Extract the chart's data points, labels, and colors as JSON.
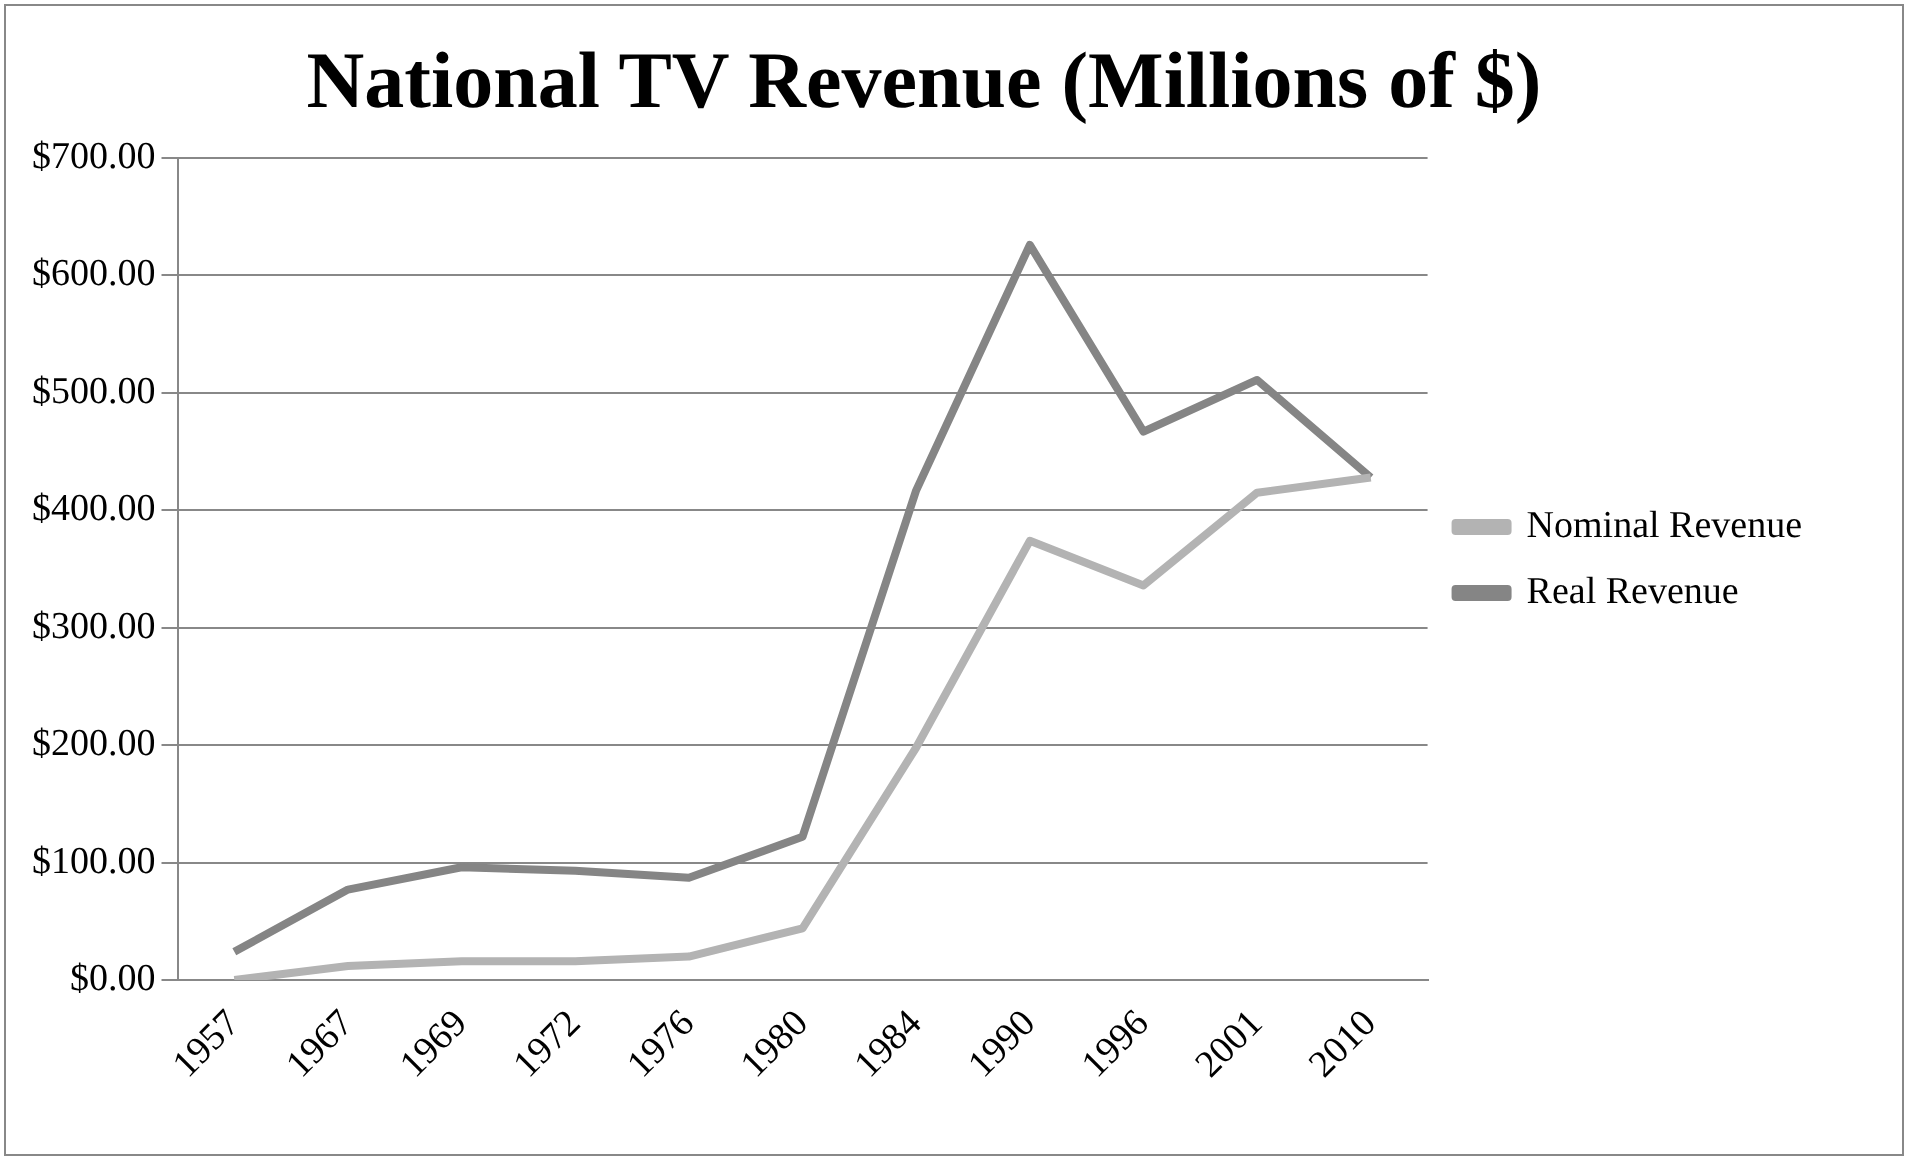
{
  "chart_data": {
    "type": "line",
    "title": "National TV Revenue (Millions of $)",
    "categories": [
      "1957",
      "1967",
      "1969",
      "1972",
      "1976",
      "1980",
      "1984",
      "1990",
      "1996",
      "2001",
      "2010"
    ],
    "series": [
      {
        "name": "Nominal Revenue",
        "color": "#b3b3b3",
        "values": [
          0,
          12,
          16,
          16,
          20,
          44,
          198,
          374,
          336,
          415,
          428
        ]
      },
      {
        "name": "Real Revenue",
        "color": "#858585",
        "values": [
          24,
          77,
          96,
          93,
          87,
          122,
          417,
          626,
          467,
          511,
          428
        ]
      }
    ],
    "ylim": [
      0,
      700
    ],
    "yticks": [
      {
        "value": 0,
        "label": "$0.00"
      },
      {
        "value": 100,
        "label": "$100.00"
      },
      {
        "value": 200,
        "label": "$200.00"
      },
      {
        "value": 300,
        "label": "$300.00"
      },
      {
        "value": 400,
        "label": "$400.00"
      },
      {
        "value": 500,
        "label": "$500.00"
      },
      {
        "value": 600,
        "label": "$600.00"
      },
      {
        "value": 700,
        "label": "$700.00"
      }
    ],
    "grid": "y",
    "legend": "right",
    "marker": "none",
    "line_style": "solid"
  }
}
